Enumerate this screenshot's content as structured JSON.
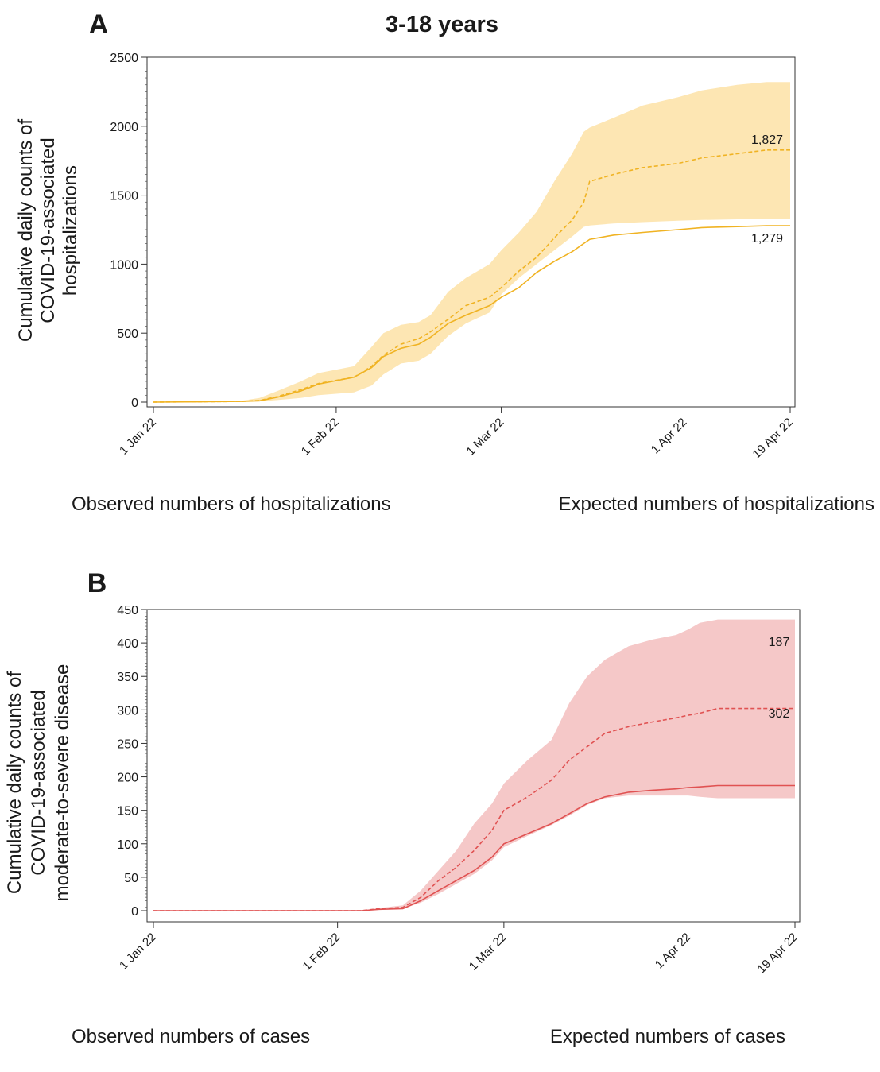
{
  "figure_title": "3-18 years",
  "chart_data": [
    {
      "type": "line",
      "panel_label": "A",
      "ylabel_lines": [
        "Cumulative daily counts of",
        "COVID-19-associated",
        "hospitalizations"
      ],
      "ylim": [
        0,
        2500
      ],
      "yticks": [
        0,
        500,
        1000,
        1500,
        2000,
        2500
      ],
      "ytick_labels": [
        "0",
        "500",
        "1000",
        "1500",
        "2000",
        "2500"
      ],
      "xlim": [
        "2022-01-01",
        "2022-04-19"
      ],
      "xticks": [
        "2022-01-01",
        "2022-02-01",
        "2022-03-01",
        "2022-04-01",
        "2022-04-19"
      ],
      "xtick_labels": [
        "1 Jan 22",
        "1 Feb 22",
        "1 Mar 22",
        "1 Apr 22",
        "19 Apr 22"
      ],
      "grid": false,
      "color": "#f0b323",
      "band_color": "#fde6b3",
      "legend": [
        "Observed numbers of hospitalizations",
        "Expected numbers of hospitalizations"
      ],
      "annotations": [
        {
          "text": "1,827",
          "series": "expected"
        },
        {
          "text": "1,279",
          "series": "observed"
        }
      ],
      "x": [
        "2022-01-01",
        "2022-01-10",
        "2022-01-16",
        "2022-01-19",
        "2022-01-22",
        "2022-01-26",
        "2022-01-29",
        "2022-02-04",
        "2022-02-07",
        "2022-02-09",
        "2022-02-12",
        "2022-02-15",
        "2022-02-17",
        "2022-02-20",
        "2022-02-23",
        "2022-02-27",
        "2022-03-01",
        "2022-03-04",
        "2022-03-07",
        "2022-03-10",
        "2022-03-13",
        "2022-03-15",
        "2022-03-16",
        "2022-03-20",
        "2022-03-25",
        "2022-03-31",
        "2022-04-04",
        "2022-04-10",
        "2022-04-15",
        "2022-04-19"
      ],
      "series": [
        {
          "name": "expected",
          "style": "dashed",
          "values": [
            0,
            3,
            5,
            12,
            40,
            90,
            135,
            180,
            260,
            340,
            420,
            460,
            510,
            600,
            700,
            760,
            830,
            950,
            1050,
            1190,
            1320,
            1450,
            1600,
            1650,
            1700,
            1730,
            1770,
            1800,
            1827,
            1827
          ]
        },
        {
          "name": "observed",
          "style": "solid",
          "values": [
            0,
            3,
            5,
            10,
            35,
            80,
            130,
            180,
            250,
            330,
            390,
            420,
            470,
            570,
            630,
            700,
            760,
            830,
            940,
            1020,
            1090,
            1150,
            1180,
            1210,
            1230,
            1250,
            1265,
            1272,
            1278,
            1279
          ]
        },
        {
          "name": "expected_lower",
          "role": "band_lower",
          "values": [
            0,
            2,
            3,
            5,
            15,
            30,
            50,
            70,
            120,
            200,
            280,
            300,
            350,
            480,
            570,
            650,
            780,
            900,
            1000,
            1100,
            1200,
            1270,
            1280,
            1295,
            1305,
            1315,
            1320,
            1325,
            1330,
            1330
          ]
        },
        {
          "name": "expected_upper",
          "role": "band_upper",
          "values": [
            0,
            5,
            10,
            30,
            80,
            150,
            210,
            260,
            400,
            500,
            560,
            580,
            630,
            800,
            900,
            1000,
            1100,
            1230,
            1380,
            1600,
            1800,
            1960,
            1990,
            2060,
            2150,
            2210,
            2260,
            2300,
            2320,
            2320
          ]
        }
      ]
    },
    {
      "type": "line",
      "panel_label": "B",
      "ylabel_lines": [
        "Cumulative daily counts of",
        "COVID-19-associated",
        "moderate-to-severe disease"
      ],
      "ylim": [
        0,
        450
      ],
      "yticks": [
        0,
        50,
        100,
        150,
        200,
        250,
        300,
        350,
        400,
        450
      ],
      "ytick_labels": [
        "0",
        "50",
        "100",
        "150",
        "200",
        "250",
        "300",
        "350",
        "400",
        "450"
      ],
      "xlim": [
        "2022-01-01",
        "2022-04-19"
      ],
      "xticks": [
        "2022-01-01",
        "2022-02-01",
        "2022-03-01",
        "2022-04-01",
        "2022-04-19"
      ],
      "xtick_labels": [
        "1 Jan 22",
        "1 Feb 22",
        "1 Mar 22",
        "1 Apr 22",
        "19 Apr 22"
      ],
      "grid": false,
      "color": "#e05252",
      "band_color": "#f5c8c8",
      "legend": [
        "Observed numbers of cases",
        "Expected numbers of cases"
      ],
      "annotations": [
        {
          "text": "302",
          "series": "expected"
        },
        {
          "text": "187",
          "series": "observed"
        }
      ],
      "x": [
        "2022-01-01",
        "2022-02-05",
        "2022-02-08",
        "2022-02-12",
        "2022-02-15",
        "2022-02-18",
        "2022-02-21",
        "2022-02-24",
        "2022-02-27",
        "2022-03-01",
        "2022-03-05",
        "2022-03-09",
        "2022-03-12",
        "2022-03-15",
        "2022-03-18",
        "2022-03-22",
        "2022-03-26",
        "2022-03-30",
        "2022-04-01",
        "2022-04-03",
        "2022-04-06",
        "2022-04-10",
        "2022-04-19"
      ],
      "series": [
        {
          "name": "expected",
          "style": "dashed",
          "values": [
            0,
            0,
            3,
            5,
            20,
            45,
            65,
            90,
            120,
            150,
            170,
            195,
            225,
            245,
            265,
            275,
            282,
            288,
            292,
            295,
            302,
            302,
            302
          ]
        },
        {
          "name": "observed",
          "style": "solid",
          "values": [
            0,
            0,
            2,
            3,
            15,
            30,
            45,
            60,
            80,
            100,
            115,
            130,
            145,
            160,
            170,
            177,
            180,
            182,
            184,
            185,
            187,
            187,
            187
          ]
        },
        {
          "name": "expected_lower",
          "role": "band_lower",
          "values": [
            0,
            0,
            2,
            3,
            12,
            25,
            40,
            55,
            75,
            95,
            112,
            128,
            142,
            158,
            168,
            172,
            172,
            172,
            172,
            170,
            168,
            168,
            168
          ]
        },
        {
          "name": "expected_upper",
          "role": "band_upper",
          "values": [
            0,
            0,
            4,
            8,
            30,
            60,
            90,
            130,
            160,
            190,
            225,
            255,
            310,
            350,
            375,
            395,
            405,
            412,
            420,
            430,
            435,
            435,
            435
          ]
        }
      ]
    }
  ]
}
